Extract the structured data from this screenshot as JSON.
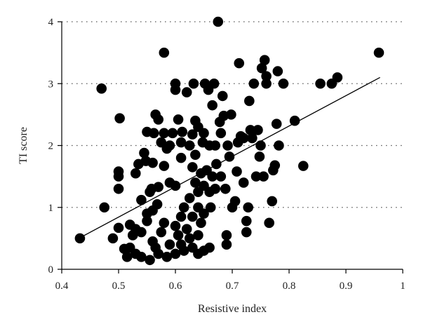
{
  "chart_data": {
    "type": "scatter",
    "title": "",
    "xlabel": "Resistive index",
    "ylabel": "TI score",
    "xlim": [
      0.4,
      1.0
    ],
    "ylim": [
      0,
      4
    ],
    "xticks": [
      "0.4",
      "0.5",
      "0.6",
      "0.7",
      "0.8",
      "0.9",
      "1"
    ],
    "yticks": [
      "0",
      "1",
      "2",
      "3",
      "4"
    ],
    "grid": "horizontal dotted at y = 1, 2, 3, 4",
    "legend": "none",
    "trendline": {
      "x": [
        0.43,
        0.96
      ],
      "y": [
        0.5,
        3.1
      ]
    },
    "points": [
      [
        0.432,
        0.5
      ],
      [
        0.47,
        2.92
      ],
      [
        0.475,
        1.0
      ],
      [
        0.49,
        0.5
      ],
      [
        0.5,
        0.67
      ],
      [
        0.5,
        1.3
      ],
      [
        0.5,
        1.5
      ],
      [
        0.5,
        1.58
      ],
      [
        0.502,
        2.44
      ],
      [
        0.51,
        0.33
      ],
      [
        0.515,
        0.2
      ],
      [
        0.52,
        0.72
      ],
      [
        0.52,
        0.35
      ],
      [
        0.525,
        0.55
      ],
      [
        0.53,
        0.65
      ],
      [
        0.53,
        0.25
      ],
      [
        0.53,
        1.55
      ],
      [
        0.535,
        1.7
      ],
      [
        0.54,
        1.12
      ],
      [
        0.54,
        0.6
      ],
      [
        0.54,
        0.2
      ],
      [
        0.545,
        1.88
      ],
      [
        0.548,
        1.75
      ],
      [
        0.55,
        0.78
      ],
      [
        0.55,
        0.9
      ],
      [
        0.55,
        2.22
      ],
      [
        0.555,
        0.15
      ],
      [
        0.555,
        1.25
      ],
      [
        0.558,
        1.3
      ],
      [
        0.56,
        0.45
      ],
      [
        0.56,
        0.95
      ],
      [
        0.56,
        1.72
      ],
      [
        0.562,
        2.2
      ],
      [
        0.565,
        2.5
      ],
      [
        0.565,
        0.35
      ],
      [
        0.568,
        1.05
      ],
      [
        0.57,
        2.42
      ],
      [
        0.57,
        0.25
      ],
      [
        0.57,
        1.33
      ],
      [
        0.575,
        0.6
      ],
      [
        0.575,
        2.05
      ],
      [
        0.58,
        0.75
      ],
      [
        0.58,
        1.67
      ],
      [
        0.58,
        2.2
      ],
      [
        0.58,
        3.5
      ],
      [
        0.585,
        0.2
      ],
      [
        0.585,
        1.95
      ],
      [
        0.59,
        0.4
      ],
      [
        0.59,
        1.4
      ],
      [
        0.59,
        2.0
      ],
      [
        0.595,
        2.2
      ],
      [
        0.6,
        0.25
      ],
      [
        0.6,
        0.7
      ],
      [
        0.6,
        1.35
      ],
      [
        0.6,
        2.9
      ],
      [
        0.6,
        3.0
      ],
      [
        0.605,
        0.55
      ],
      [
        0.605,
        2.42
      ],
      [
        0.61,
        0.4
      ],
      [
        0.61,
        0.85
      ],
      [
        0.61,
        1.8
      ],
      [
        0.61,
        2.05
      ],
      [
        0.612,
        2.22
      ],
      [
        0.615,
        0.3
      ],
      [
        0.615,
        1.0
      ],
      [
        0.62,
        0.65
      ],
      [
        0.62,
        2.86
      ],
      [
        0.625,
        0.5
      ],
      [
        0.625,
        1.15
      ],
      [
        0.625,
        2.0
      ],
      [
        0.63,
        0.35
      ],
      [
        0.63,
        0.85
      ],
      [
        0.63,
        1.65
      ],
      [
        0.63,
        2.18
      ],
      [
        0.632,
        3.0
      ],
      [
        0.635,
        1.4
      ],
      [
        0.635,
        2.4
      ],
      [
        0.635,
        1.85
      ],
      [
        0.64,
        0.25
      ],
      [
        0.64,
        0.55
      ],
      [
        0.64,
        1.0
      ],
      [
        0.64,
        1.25
      ],
      [
        0.64,
        2.3
      ],
      [
        0.645,
        0.75
      ],
      [
        0.645,
        1.55
      ],
      [
        0.648,
        2.05
      ],
      [
        0.65,
        0.3
      ],
      [
        0.65,
        0.9
      ],
      [
        0.65,
        1.35
      ],
      [
        0.65,
        2.2
      ],
      [
        0.652,
        3.0
      ],
      [
        0.655,
        1.6
      ],
      [
        0.658,
        2.9
      ],
      [
        0.66,
        0.35
      ],
      [
        0.66,
        1.25
      ],
      [
        0.66,
        2.0
      ],
      [
        0.662,
        1.0
      ],
      [
        0.665,
        1.5
      ],
      [
        0.665,
        2.65
      ],
      [
        0.668,
        3.0
      ],
      [
        0.67,
        1.3
      ],
      [
        0.67,
        2.0
      ],
      [
        0.672,
        1.7
      ],
      [
        0.675,
        4.0
      ],
      [
        0.678,
        2.38
      ],
      [
        0.68,
        1.5
      ],
      [
        0.68,
        2.2
      ],
      [
        0.683,
        2.8
      ],
      [
        0.685,
        2.48
      ],
      [
        0.688,
        1.3
      ],
      [
        0.69,
        0.4
      ],
      [
        0.69,
        0.55
      ],
      [
        0.692,
        2.0
      ],
      [
        0.695,
        1.82
      ],
      [
        0.698,
        2.5
      ],
      [
        0.7,
        1.0
      ],
      [
        0.705,
        1.1
      ],
      [
        0.708,
        1.58
      ],
      [
        0.71,
        2.05
      ],
      [
        0.712,
        3.33
      ],
      [
        0.715,
        2.15
      ],
      [
        0.72,
        1.4
      ],
      [
        0.72,
        2.12
      ],
      [
        0.725,
        0.6
      ],
      [
        0.725,
        0.78
      ],
      [
        0.728,
        1.0
      ],
      [
        0.73,
        2.72
      ],
      [
        0.732,
        2.25
      ],
      [
        0.735,
        2.12
      ],
      [
        0.738,
        3.0
      ],
      [
        0.742,
        1.5
      ],
      [
        0.745,
        2.25
      ],
      [
        0.748,
        1.82
      ],
      [
        0.75,
        2.0
      ],
      [
        0.752,
        3.25
      ],
      [
        0.755,
        1.5
      ],
      [
        0.757,
        3.38
      ],
      [
        0.76,
        3.0
      ],
      [
        0.76,
        3.12
      ],
      [
        0.765,
        0.75
      ],
      [
        0.77,
        1.1
      ],
      [
        0.772,
        1.6
      ],
      [
        0.775,
        1.68
      ],
      [
        0.778,
        2.35
      ],
      [
        0.78,
        3.2
      ],
      [
        0.782,
        2.0
      ],
      [
        0.79,
        3.0
      ],
      [
        0.81,
        2.4
      ],
      [
        0.825,
        1.67
      ],
      [
        0.855,
        3.0
      ],
      [
        0.875,
        3.0
      ],
      [
        0.885,
        3.1
      ],
      [
        0.958,
        3.5
      ]
    ]
  }
}
